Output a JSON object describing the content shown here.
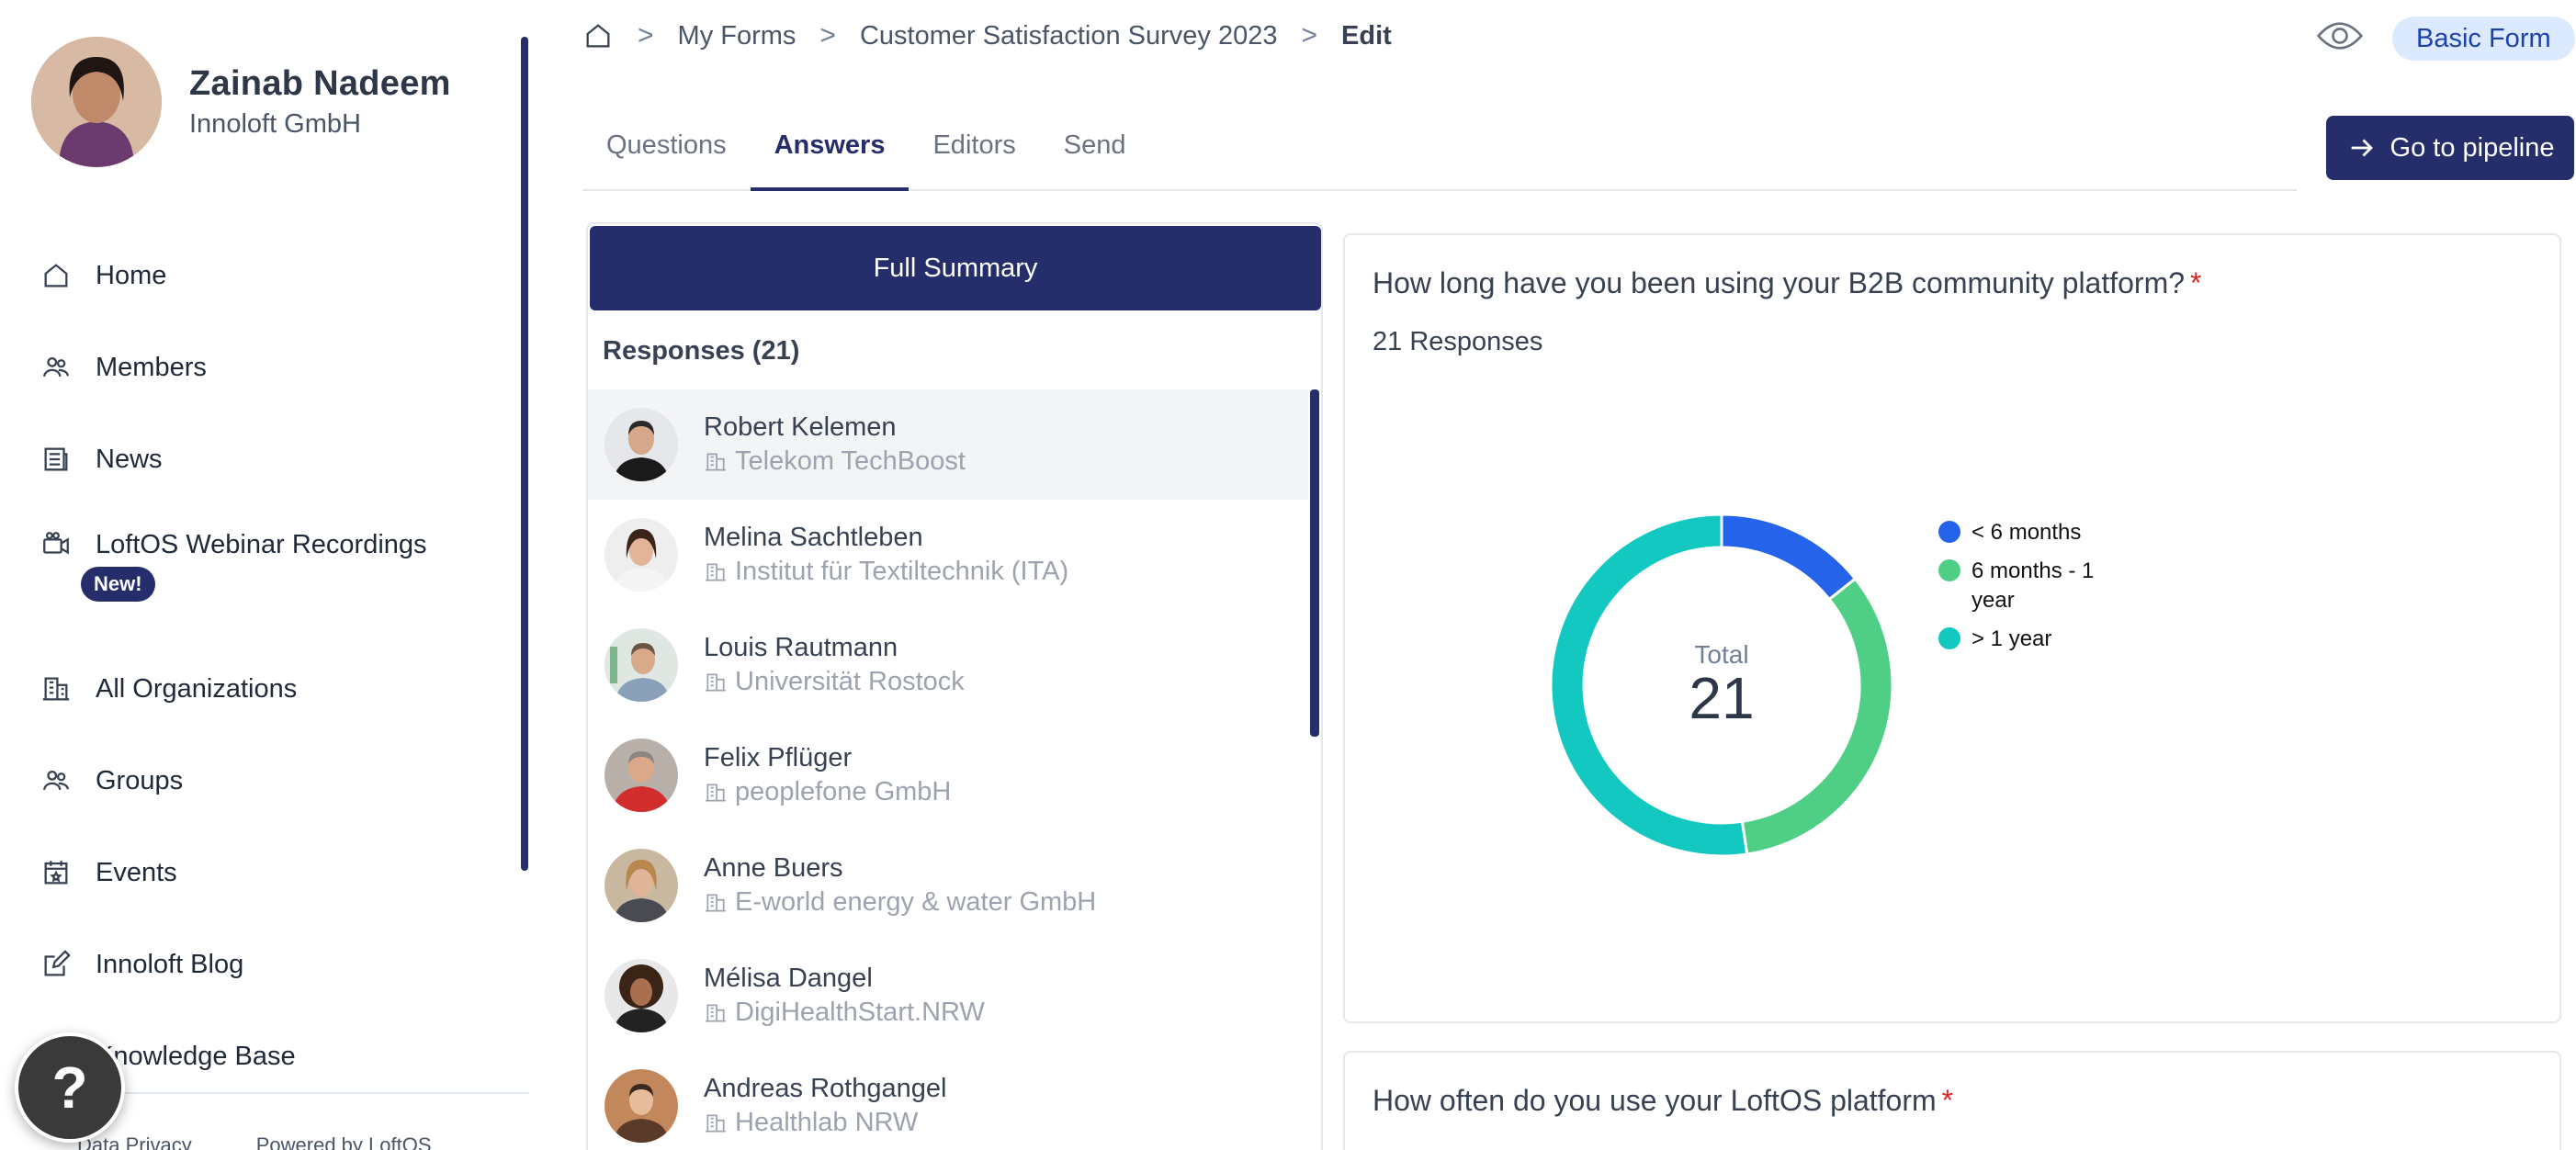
{
  "profile": {
    "name": "Zainab Nadeem",
    "org": "Innoloft GmbH"
  },
  "sidebar": {
    "items": [
      {
        "label": "Home",
        "icon": "home-icon"
      },
      {
        "label": "Members",
        "icon": "members-icon"
      },
      {
        "label": "News",
        "icon": "news-icon"
      },
      {
        "label": "LoftOS Webinar Recordings",
        "icon": "video-icon"
      },
      {
        "label": "All Organizations",
        "icon": "building-icon"
      },
      {
        "label": "Groups",
        "icon": "groups-icon"
      },
      {
        "label": "Events",
        "icon": "calendar-icon"
      },
      {
        "label": "Innoloft Blog",
        "icon": "edit-icon"
      },
      {
        "label": "Knowledge Base",
        "icon": "book-icon"
      }
    ],
    "new_badge": "New!",
    "footer": {
      "privacy": "Data Privacy",
      "powered": "Powered by LoftOS"
    },
    "help_label": "?"
  },
  "breadcrumb": {
    "items": [
      "My Forms",
      "Customer Satisfaction Survey 2023"
    ],
    "current": "Edit",
    "separator": ">"
  },
  "header": {
    "badge": "Basic Form",
    "pipeline_label": "Go to pipeline"
  },
  "tabs": [
    {
      "label": "Questions",
      "active": false
    },
    {
      "label": "Answers",
      "active": true
    },
    {
      "label": "Editors",
      "active": false
    },
    {
      "label": "Send",
      "active": false
    }
  ],
  "responses": {
    "summary_label": "Full Summary",
    "header": "Responses (21)",
    "items": [
      {
        "name": "Robert Kelemen",
        "org": "Telekom TechBoost",
        "selected": true
      },
      {
        "name": "Melina Sachtleben",
        "org": "Institut für Textiltechnik (ITA)",
        "selected": false
      },
      {
        "name": "Louis Rautmann",
        "org": "Universität Rostock",
        "selected": false
      },
      {
        "name": "Felix Pflüger",
        "org": "peoplefone GmbH",
        "selected": false
      },
      {
        "name": "Anne Buers",
        "org": "E-world energy & water GmbH",
        "selected": false
      },
      {
        "name": "Mélisa Dangel",
        "org": "DigiHealthStart.NRW",
        "selected": false
      },
      {
        "name": "Andreas Rothgangel",
        "org": "Healthlab NRW",
        "selected": false
      }
    ]
  },
  "question1": {
    "title": "How long have you been using your B2B community platform?",
    "required_mark": "*",
    "count_label": "21 Responses",
    "total_label": "Total",
    "total_value": "21"
  },
  "question2": {
    "title": "How often do you use your LoftOS platform",
    "required_mark": "*"
  },
  "chart_data": {
    "type": "pie",
    "categories": [
      "< 6 months",
      "6 months - 1 year",
      "> 1 year"
    ],
    "values": [
      3,
      7,
      11
    ],
    "colors": [
      "#2563eb",
      "#4fcf86",
      "#13c8c0"
    ],
    "legend": "right"
  },
  "colors": {
    "primary": "#262d6b",
    "required": "#dc2626",
    "badge_bg": "#dbeafe"
  }
}
